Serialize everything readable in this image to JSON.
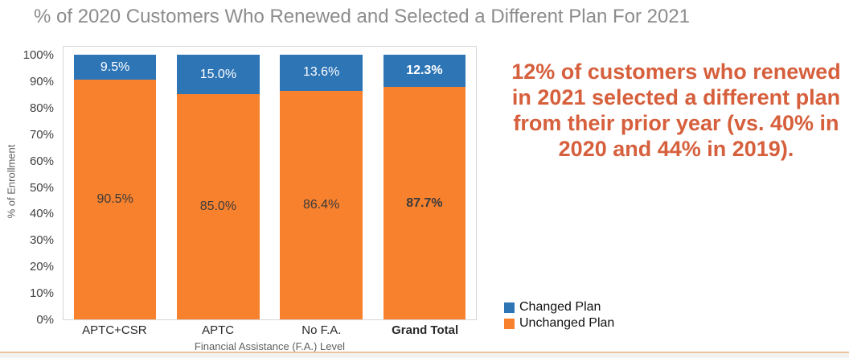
{
  "page": {
    "title": "% of 2020 Customers Who Renewed and Selected a Different Plan For 2021"
  },
  "callout": {
    "text": "12% of customers who renewed in 2021 selected a different plan from their prior year (vs. 40% in 2020 and 44% in 2019).",
    "color": "#d65f3c"
  },
  "chart_data": {
    "type": "bar",
    "stacked": true,
    "title": "% of 2020 Customers Who Renewed and Selected a Different Plan For 2021",
    "xlabel": "Financial Assistance (F.A.) Level",
    "ylabel": "% of Enrollment",
    "categories": [
      "APTC+CSR",
      "APTC",
      "No F.A.",
      "Grand Total"
    ],
    "series": [
      {
        "name": "Unchanged Plan",
        "color": "#f8812e",
        "values": [
          90.5,
          85.0,
          86.4,
          87.7
        ],
        "data_labels": [
          "90.5%",
          "85.0%",
          "86.4%",
          "87.7%"
        ],
        "label_color": "#3b3b3b"
      },
      {
        "name": "Changed Plan",
        "color": "#2e75b6",
        "values": [
          9.5,
          15.0,
          13.6,
          12.3
        ],
        "data_labels": [
          "9.5%",
          "15.0%",
          "13.6%",
          "12.3%"
        ],
        "label_color": "#ffffff"
      }
    ],
    "emphasized_category": "Grand Total",
    "ylim": [
      0,
      100
    ],
    "yticks": [
      "0%",
      "10%",
      "20%",
      "30%",
      "40%",
      "50%",
      "60%",
      "70%",
      "80%",
      "90%",
      "100%"
    ],
    "grid": false,
    "legend_position": "bottom-right",
    "legend": [
      {
        "label": "Changed Plan",
        "color": "#2e75b6"
      },
      {
        "label": "Unchanged Plan",
        "color": "#f8812e"
      }
    ]
  }
}
